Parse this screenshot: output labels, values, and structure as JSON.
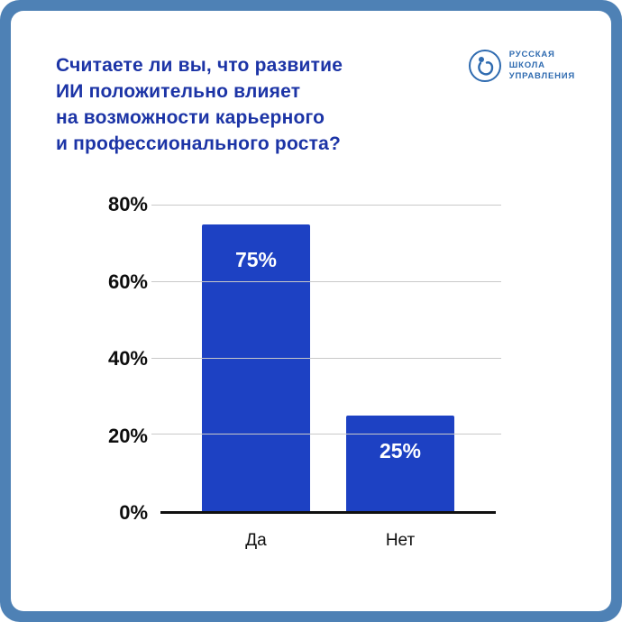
{
  "page": {
    "frame_bg": "#4e81b5",
    "card_bg": "#ffffff"
  },
  "header": {
    "title_lines": [
      "Считаете ли вы, что развитие",
      "ИИ положительно влияет",
      "на возможности карьерного",
      "и профессионального роста?"
    ],
    "title_color": "#1c34a6"
  },
  "logo": {
    "lines": [
      "РУССКАЯ",
      "ШКОЛА",
      "УПРАВЛЕНИЯ"
    ],
    "color": "#2f6bb0"
  },
  "chart_data": {
    "type": "bar",
    "title": "Считаете ли вы, что развитие ИИ положительно влияет на возможности карьерного и профессионального роста?",
    "categories": [
      "Да",
      "Нет"
    ],
    "values": [
      75,
      25
    ],
    "value_labels": [
      "75%",
      "25%"
    ],
    "yticks": [
      0,
      20,
      40,
      60,
      80
    ],
    "ytick_labels": [
      "0%",
      "20%",
      "40%",
      "60%",
      "80%"
    ],
    "ylim": [
      0,
      80
    ],
    "xlabel": "",
    "ylabel": "",
    "grid": true,
    "legend": "none",
    "bar_color": "#1d41c3"
  }
}
